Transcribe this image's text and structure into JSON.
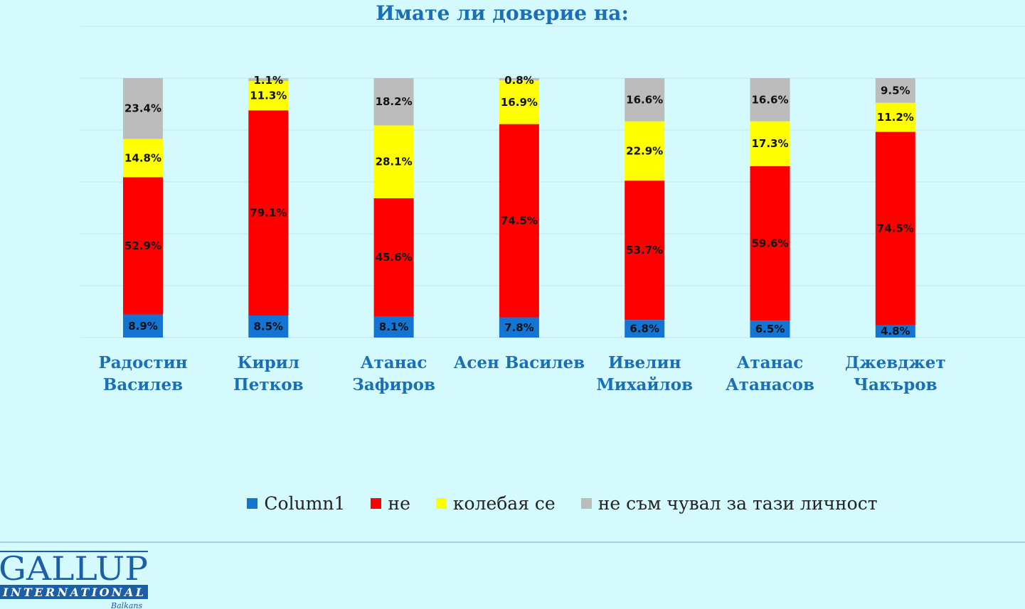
{
  "chart_data": {
    "type": "bar",
    "stacked": true,
    "title": "Имате  ли доверие на:",
    "categories": [
      [
        "Радостин",
        "Василев"
      ],
      [
        "Кирил",
        "Петков"
      ],
      [
        "Атанас",
        "Зафиров"
      ],
      [
        "Асен Василев"
      ],
      [
        "Ивелин",
        "Михайлов"
      ],
      [
        "Атанас",
        "Атанасов"
      ],
      [
        "Джевджет",
        "Чакъров"
      ]
    ],
    "series": [
      {
        "name": "Column1",
        "color": "#1474d4",
        "values": [
          8.9,
          8.5,
          8.1,
          7.8,
          6.8,
          6.5,
          4.8
        ]
      },
      {
        "name": "не",
        "color": "#ff0000",
        "values": [
          52.9,
          79.1,
          45.6,
          74.5,
          53.7,
          59.6,
          74.5
        ]
      },
      {
        "name": "колебая се",
        "color": "#ffff00",
        "values": [
          14.8,
          11.3,
          28.1,
          16.9,
          22.9,
          17.3,
          11.2
        ]
      },
      {
        "name": "не съм чувал за тази личност",
        "color": "#bcbcbc",
        "values": [
          23.4,
          1.1,
          18.2,
          0.8,
          16.6,
          16.6,
          9.5
        ]
      }
    ],
    "value_suffix": "%",
    "ylim": [
      0,
      100
    ],
    "grid": true,
    "legend_position": "bottom"
  },
  "logo": {
    "line1": "GALLUP",
    "line2": "INTERNATIONAL",
    "line3": "Balkans"
  }
}
